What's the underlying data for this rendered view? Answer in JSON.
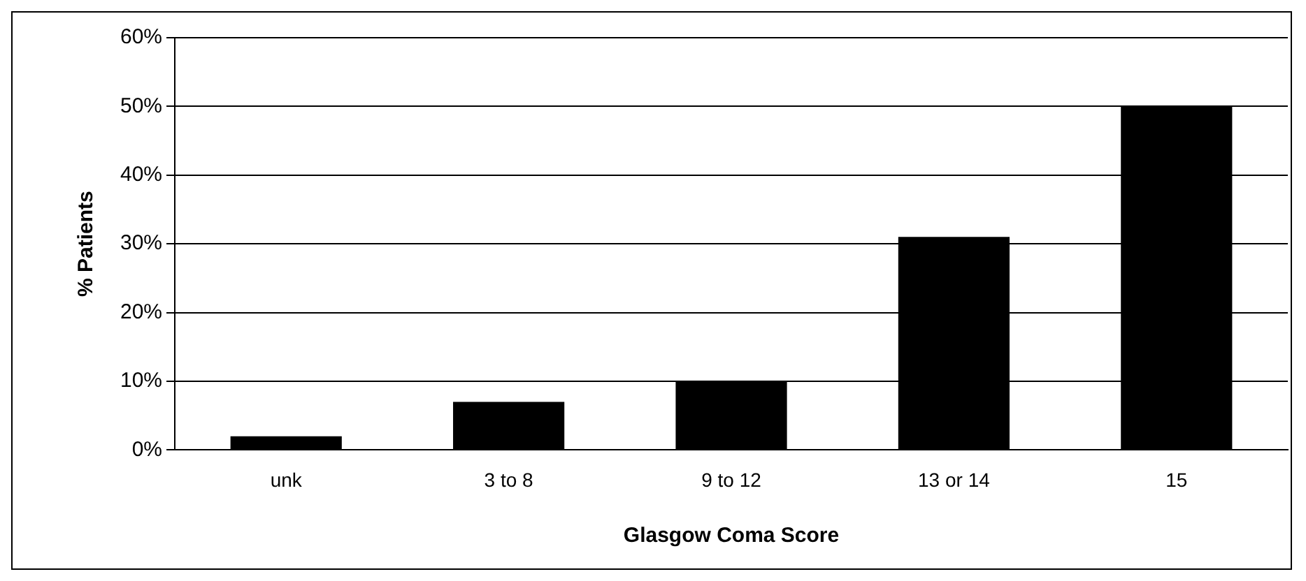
{
  "chart_data": {
    "type": "bar",
    "xlabel": "Glasgow Coma Score",
    "ylabel": "% Patients",
    "categories": [
      "unk",
      "3 to 8",
      "9 to 12",
      "13 or 14",
      "15"
    ],
    "values": [
      2,
      7,
      10,
      31,
      50
    ],
    "color": "#000000",
    "ylim": [
      0,
      60
    ],
    "yticks": [
      {
        "value": 0,
        "label": "0%"
      },
      {
        "value": 10,
        "label": "10%"
      },
      {
        "value": 20,
        "label": "20%"
      },
      {
        "value": 30,
        "label": "30%"
      },
      {
        "value": 40,
        "label": "40%"
      },
      {
        "value": 50,
        "label": "50%"
      },
      {
        "value": 60,
        "label": "60%"
      }
    ],
    "grid": "y",
    "legend": false
  }
}
